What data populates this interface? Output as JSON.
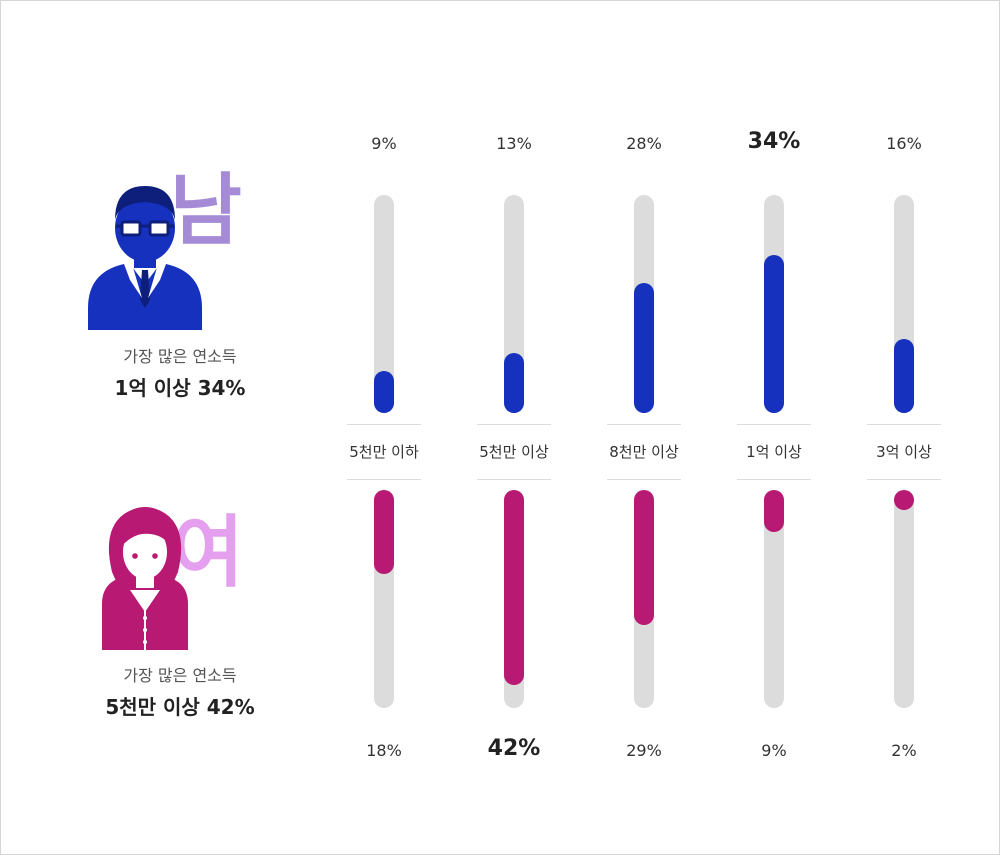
{
  "male": {
    "char": "남",
    "label": "가장 많은 연소득",
    "value": "1억 이상 34%",
    "color": "#1531bd",
    "accent": "#a58ad6",
    "icon": "man-with-glasses-icon"
  },
  "female": {
    "char": "여",
    "label": "가장 많은 연소득",
    "value": "5천만 이상 42%",
    "color": "#b81972",
    "accent": "#e4a0ee",
    "icon": "woman-icon"
  },
  "chart_data": {
    "type": "bar",
    "categories": [
      "5천만 이하",
      "5천만 이상",
      "8천만 이상",
      "1억 이상",
      "3억 이상"
    ],
    "series": [
      {
        "values": [
          9,
          13,
          28,
          34,
          16
        ],
        "labels": [
          "9%",
          "13%",
          "28%",
          "34%",
          "16%"
        ],
        "color": "#1531bd"
      },
      {
        "values": [
          18,
          42,
          29,
          9,
          2
        ],
        "labels": [
          "18%",
          "42%",
          "29%",
          "9%",
          "2%"
        ],
        "color": "#b81972"
      }
    ],
    "ylim": [
      0,
      42
    ],
    "track_color": "#dcdcdc"
  }
}
